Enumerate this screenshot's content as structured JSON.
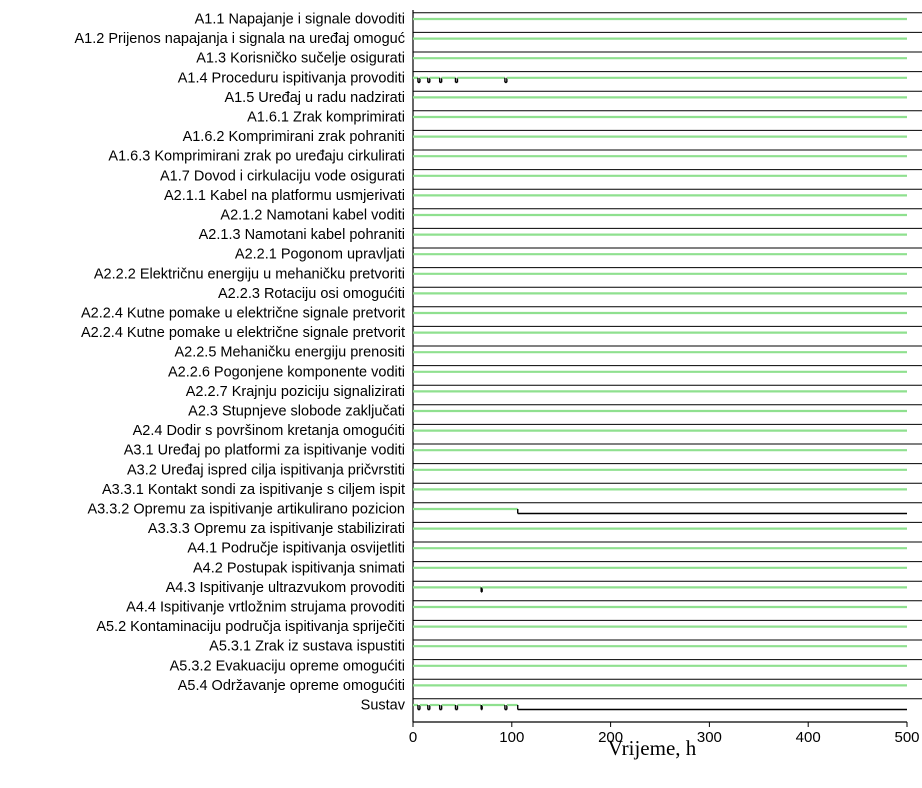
{
  "chart_data": {
    "type": "timeline",
    "xlabel": "Vrijeme, h",
    "xlim": [
      0,
      500
    ],
    "xticks": [
      0,
      100,
      200,
      300,
      400,
      500
    ],
    "colors": {
      "up": "#8fe08f",
      "down": "#000000"
    },
    "rows": [
      {
        "label": "A1.1 Napajanje i signale dovoditi",
        "down": []
      },
      {
        "label": "A1.2 Prijenos napajanja i signala na uređaj omoguć",
        "down": []
      },
      {
        "label": "A1.3 Korisničko sučelje osigurati",
        "down": []
      },
      {
        "label": "A1.4 Proceduru ispitivanja provoditi",
        "down": [
          [
            5,
            7
          ],
          [
            15,
            17
          ],
          [
            27,
            29
          ],
          [
            43,
            45
          ],
          [
            93,
            95
          ]
        ]
      },
      {
        "label": "A1.5 Uređaj u radu nadzirati",
        "down": []
      },
      {
        "label": "A1.6.1 Zrak komprimirati",
        "down": []
      },
      {
        "label": "A1.6.2 Komprimirani zrak pohraniti",
        "down": []
      },
      {
        "label": "A1.6.3 Komprimirani zrak po uređaju cirkulirati",
        "down": []
      },
      {
        "label": "A1.7 Dovod i cirkulaciju vode osigurati",
        "down": []
      },
      {
        "label": "A2.1.1 Kabel na platformu usmjerivati",
        "down": []
      },
      {
        "label": "A2.1.2 Namotani kabel voditi",
        "down": []
      },
      {
        "label": "A2.1.3 Namotani kabel pohraniti",
        "down": []
      },
      {
        "label": "A2.2.1 Pogonom upravljati",
        "down": []
      },
      {
        "label": "A2.2.2 Električnu energiju u mehaničku pretvoriti",
        "down": []
      },
      {
        "label": "A2.2.3 Rotaciju osi omogućiti",
        "down": []
      },
      {
        "label": "A2.2.4 Kutne pomake u električne signale pretvorit",
        "down": []
      },
      {
        "label": "A2.2.4 Kutne pomake u električne signale pretvorit",
        "down": []
      },
      {
        "label": "A2.2.5 Mehaničku energiju prenositi",
        "down": []
      },
      {
        "label": "A2.2.6 Pogonjene komponente voditi",
        "down": []
      },
      {
        "label": "A2.2.7 Krajnju poziciju signalizirati",
        "down": []
      },
      {
        "label": "A2.3 Stupnjeve slobode zaključati",
        "down": []
      },
      {
        "label": "A2.4 Dodir s površinom kretanja omogućiti",
        "down": []
      },
      {
        "label": "A3.1 Uređaj po platformi za ispitivanje voditi",
        "down": []
      },
      {
        "label": "A3.2 Uređaj ispred cilja ispitivanja pričvrstiti",
        "down": []
      },
      {
        "label": "A3.3.1 Kontakt sondi za ispitivanje s ciljem ispit",
        "down": []
      },
      {
        "label": "A3.3.2 Opremu za ispitivanje artikulirano pozicion",
        "down": [
          [
            106,
            500
          ]
        ]
      },
      {
        "label": "A3.3.3 Opremu za ispitivanje stabilizirati",
        "down": []
      },
      {
        "label": "A4.1 Područje ispitivanja osvijetliti",
        "down": []
      },
      {
        "label": "A4.2 Postupak ispitivanja snimati",
        "down": []
      },
      {
        "label": "A4.3 Ispitivanje ultrazvukom provoditi",
        "down": [
          [
            69,
            70
          ]
        ]
      },
      {
        "label": "A4.4 Ispitivanje vrtložnim strujama provoditi",
        "down": []
      },
      {
        "label": "A5.2 Kontaminaciju područja ispitivanja spriječiti",
        "down": []
      },
      {
        "label": "A5.3.1 Zrak iz sustava ispustiti",
        "down": []
      },
      {
        "label": "A5.3.2 Evakuaciju opreme omogućiti",
        "down": []
      },
      {
        "label": "A5.4 Održavanje opreme omogućiti",
        "down": []
      },
      {
        "label": "Sustav",
        "down": [
          [
            5,
            7
          ],
          [
            15,
            17
          ],
          [
            27,
            29
          ],
          [
            43,
            45
          ],
          [
            69,
            70
          ],
          [
            93,
            95
          ],
          [
            106,
            500
          ]
        ]
      }
    ]
  }
}
